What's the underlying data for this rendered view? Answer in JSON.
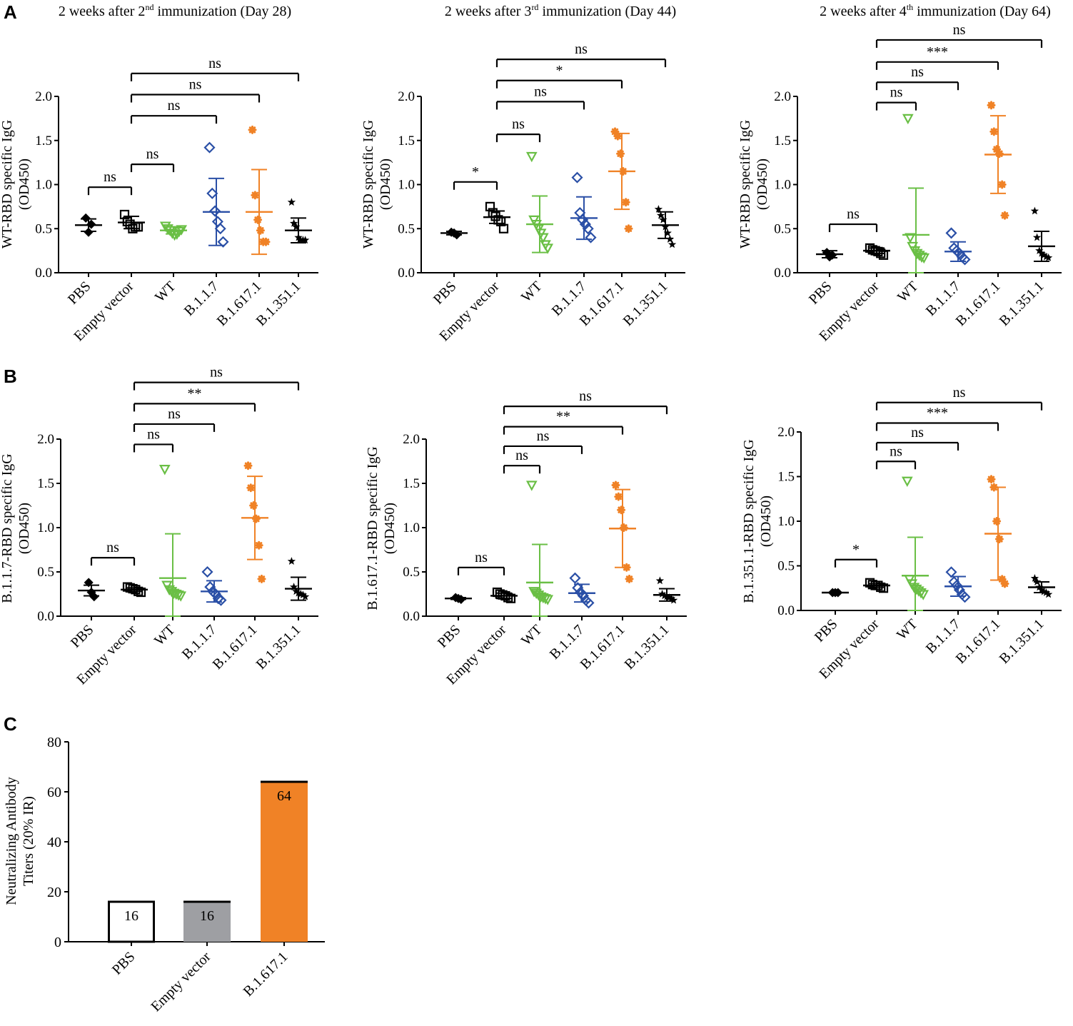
{
  "figure": {
    "panel_labels": [
      "A",
      "B",
      "C"
    ],
    "groups": [
      "PBS",
      "Empty vector",
      "WT",
      "B.1.1.7",
      "B.1.617.1",
      "B.1.351.1"
    ],
    "colors": {
      "PBS": "#000000",
      "Empty vector": "#000000",
      "WT": "#6abf45",
      "B.1.1.7": "#2a4fa6",
      "B.1.617.1": "#f08226",
      "B.1.351.1": "#000000"
    },
    "markers": [
      "diamond-filled",
      "square-open",
      "triangle-open",
      "diamond-open",
      "asterisk",
      "star"
    ],
    "titles": {
      "A1": {
        "pre": "2 weeks after 2",
        "sup": "nd",
        "post": " immunization (Day 28)"
      },
      "A2": {
        "pre": "2 weeks after 3",
        "sup": "rd",
        "post": " immunization (Day 44)"
      },
      "A3": {
        "pre": "2 weeks after 4",
        "sup": "th",
        "post": " immunization (Day 64)"
      }
    }
  },
  "chart_data": [
    {
      "id": "A1",
      "type": "scatter",
      "ylabel": [
        "WT-RBD specific IgG",
        "(OD450)"
      ],
      "ylim": [
        0,
        2.0
      ],
      "yticks": [
        "0.0",
        "0.5",
        "1.0",
        "1.5",
        "2.0"
      ],
      "points": [
        [
          0.62,
          0.46,
          0.55
        ],
        [
          0.66,
          0.58,
          0.55,
          0.5,
          0.52,
          0.52
        ],
        [
          0.53,
          0.5,
          0.48,
          0.45,
          0.43,
          0.44,
          0.47,
          0.49
        ],
        [
          1.42,
          0.9,
          0.7,
          0.58,
          0.5,
          0.35
        ],
        [
          1.62,
          0.88,
          0.6,
          0.48,
          0.35,
          0.35
        ],
        [
          0.8,
          0.56,
          0.52,
          0.4,
          0.37,
          0.37,
          0.37
        ]
      ],
      "mean": [
        0.54,
        0.57,
        0.48,
        0.69,
        0.69,
        0.48
      ],
      "sd": [
        0.07,
        0.07,
        0.04,
        0.38,
        0.48,
        0.14
      ],
      "comparisons": [
        {
          "from": 0,
          "to": 1,
          "label": "ns",
          "y": 0.97
        },
        {
          "from": 1,
          "to": 2,
          "label": "ns",
          "y": 1.23
        },
        {
          "from": 1,
          "to": 3,
          "label": "ns",
          "y": 1.78
        },
        {
          "from": 1,
          "to": 4,
          "label": "ns",
          "y": 2.02
        },
        {
          "from": 1,
          "to": 5,
          "label": "ns",
          "y": 2.26
        }
      ]
    },
    {
      "id": "A2",
      "type": "scatter",
      "ylabel": [
        "WT-RBD specific IgG",
        "(OD450)"
      ],
      "ylim": [
        0,
        2.0
      ],
      "yticks": [
        "0.0",
        "0.5",
        "1.0",
        "1.5",
        "2.0"
      ],
      "points": [
        [
          0.46,
          0.45,
          0.43
        ],
        [
          0.75,
          0.68,
          0.64,
          0.6,
          0.58,
          0.5
        ],
        [
          1.32,
          0.6,
          0.55,
          0.5,
          0.45,
          0.4,
          0.32,
          0.28
        ],
        [
          1.08,
          0.68,
          0.6,
          0.55,
          0.5,
          0.4
        ],
        [
          1.6,
          1.55,
          1.35,
          1.15,
          0.8,
          0.5
        ],
        [
          0.72,
          0.65,
          0.6,
          0.52,
          0.45,
          0.38,
          0.32
        ]
      ],
      "mean": [
        0.45,
        0.63,
        0.55,
        0.62,
        1.15,
        0.54
      ],
      "sd": [
        0.02,
        0.07,
        0.32,
        0.24,
        0.43,
        0.15
      ],
      "comparisons": [
        {
          "from": 0,
          "to": 1,
          "label": "*",
          "y": 1.03
        },
        {
          "from": 1,
          "to": 2,
          "label": "ns",
          "y": 1.57
        },
        {
          "from": 1,
          "to": 3,
          "label": "ns",
          "y": 1.94
        },
        {
          "from": 1,
          "to": 4,
          "label": "*",
          "y": 2.18
        },
        {
          "from": 1,
          "to": 5,
          "label": "ns",
          "y": 2.42
        }
      ]
    },
    {
      "id": "A3",
      "type": "scatter",
      "ylabel": [
        "WT-RBD specific IgG",
        "(OD450)"
      ],
      "ylim": [
        0,
        2.0
      ],
      "yticks": [
        "0.0",
        "0.5",
        "1.0",
        "1.5",
        "2.0"
      ],
      "points": [
        [
          0.23,
          0.18,
          0.2
        ],
        [
          0.28,
          0.26,
          0.25,
          0.24,
          0.22,
          0.2
        ],
        [
          1.75,
          0.4,
          0.3,
          0.25,
          0.22,
          0.2,
          0.18,
          0.17
        ],
        [
          0.45,
          0.28,
          0.25,
          0.22,
          0.18,
          0.15
        ],
        [
          1.9,
          1.6,
          1.4,
          1.35,
          1.0,
          0.65
        ],
        [
          0.7,
          0.4,
          0.25,
          0.22,
          0.2,
          0.18,
          0.17
        ]
      ],
      "mean": [
        0.21,
        0.25,
        0.43,
        0.24,
        1.34,
        0.3
      ],
      "sd": [
        0.04,
        0.03,
        0.53,
        0.11,
        0.44,
        0.17
      ],
      "comparisons": [
        {
          "from": 1,
          "to": 2,
          "label": "ns",
          "y": 1.93
        },
        {
          "from": 1,
          "to": 3,
          "label": "ns",
          "y": 2.16
        },
        {
          "from": 1,
          "to": 4,
          "label": "***",
          "y": 2.39
        },
        {
          "from": 1,
          "to": 5,
          "label": "ns",
          "y": 2.64
        },
        {
          "from": 0,
          "to": 1,
          "label": "ns",
          "y": 0.55
        }
      ]
    },
    {
      "id": "B1",
      "type": "scatter",
      "ylabel": [
        "B.1.1.7-RBD specific IgG",
        "(OD450)"
      ],
      "ylim": [
        0,
        2.0
      ],
      "yticks": [
        "0.0",
        "0.5",
        "1.0",
        "1.5",
        "2.0"
      ],
      "points": [
        [
          0.38,
          0.27,
          0.22
        ],
        [
          0.33,
          0.32,
          0.31,
          0.3,
          0.28,
          0.27
        ],
        [
          1.66,
          0.35,
          0.3,
          0.28,
          0.26,
          0.25,
          0.24,
          0.23
        ],
        [
          0.5,
          0.33,
          0.28,
          0.25,
          0.2,
          0.18
        ],
        [
          1.7,
          1.45,
          1.25,
          1.1,
          0.8,
          0.42
        ],
        [
          0.62,
          0.33,
          0.28,
          0.26,
          0.25,
          0.24,
          0.22
        ]
      ],
      "mean": [
        0.29,
        0.3,
        0.43,
        0.28,
        1.11,
        0.31
      ],
      "sd": [
        0.06,
        0.02,
        0.5,
        0.12,
        0.47,
        0.13
      ],
      "comparisons": [
        {
          "from": 0,
          "to": 1,
          "label": "ns",
          "y": 0.66
        },
        {
          "from": 1,
          "to": 2,
          "label": "ns",
          "y": 1.94
        },
        {
          "from": 1,
          "to": 3,
          "label": "ns",
          "y": 2.17
        },
        {
          "from": 1,
          "to": 4,
          "label": "**",
          "y": 2.4
        },
        {
          "from": 1,
          "to": 5,
          "label": "ns",
          "y": 2.64
        }
      ]
    },
    {
      "id": "B2",
      "type": "scatter",
      "ylabel": [
        "B.1.617.1-RBD specific IgG",
        "(OD450)"
      ],
      "ylim": [
        0,
        2.0
      ],
      "yticks": [
        "0.0",
        "0.5",
        "1.0",
        "1.5",
        "2.0"
      ],
      "points": [
        [
          0.21,
          0.2,
          0.19
        ],
        [
          0.27,
          0.25,
          0.24,
          0.23,
          0.21,
          0.2
        ],
        [
          1.48,
          0.28,
          0.26,
          0.24,
          0.22,
          0.21,
          0.2,
          0.19
        ],
        [
          0.43,
          0.32,
          0.27,
          0.23,
          0.18,
          0.15
        ],
        [
          1.48,
          1.35,
          1.2,
          1.0,
          0.55,
          0.42
        ],
        [
          0.4,
          0.25,
          0.23,
          0.22,
          0.21,
          0.2,
          0.18
        ]
      ],
      "mean": [
        0.2,
        0.23,
        0.38,
        0.26,
        0.99,
        0.24
      ],
      "sd": [
        0.01,
        0.03,
        0.43,
        0.1,
        0.44,
        0.07
      ],
      "comparisons": [
        {
          "from": 0,
          "to": 1,
          "label": "ns",
          "y": 0.55
        },
        {
          "from": 1,
          "to": 2,
          "label": "ns",
          "y": 1.7
        },
        {
          "from": 1,
          "to": 3,
          "label": "ns",
          "y": 1.92
        },
        {
          "from": 1,
          "to": 4,
          "label": "**",
          "y": 2.14
        },
        {
          "from": 1,
          "to": 5,
          "label": "ns",
          "y": 2.37
        }
      ]
    },
    {
      "id": "B3",
      "type": "scatter",
      "ylabel": [
        "B.1.351.1-RBD specific IgG",
        "(OD450)"
      ],
      "ylim": [
        0,
        2.0
      ],
      "yticks": [
        "0.0",
        "0.5",
        "1.0",
        "1.5",
        "2.0"
      ],
      "points": [
        [
          0.2,
          0.2,
          0.2
        ],
        [
          0.31,
          0.29,
          0.28,
          0.28,
          0.26,
          0.25
        ],
        [
          1.45,
          0.35,
          0.3,
          0.26,
          0.24,
          0.22,
          0.2,
          0.18
        ],
        [
          0.43,
          0.32,
          0.28,
          0.23,
          0.18,
          0.15
        ],
        [
          1.47,
          1.38,
          1.0,
          0.8,
          0.35,
          0.3
        ],
        [
          0.36,
          0.32,
          0.26,
          0.23,
          0.21,
          0.2,
          0.18
        ]
      ],
      "mean": [
        0.2,
        0.28,
        0.39,
        0.27,
        0.86,
        0.26
      ],
      "sd": [
        0.0,
        0.02,
        0.43,
        0.11,
        0.52,
        0.06
      ],
      "comparisons": [
        {
          "from": 0,
          "to": 1,
          "label": "*",
          "y": 0.57
        },
        {
          "from": 1,
          "to": 2,
          "label": "ns",
          "y": 1.67
        },
        {
          "from": 1,
          "to": 3,
          "label": "ns",
          "y": 1.88
        },
        {
          "from": 1,
          "to": 4,
          "label": "***",
          "y": 2.1
        },
        {
          "from": 1,
          "to": 5,
          "label": "ns",
          "y": 2.33
        }
      ]
    },
    {
      "id": "C",
      "type": "bar",
      "ylabel": [
        "Neutralizing Antibody",
        "Titers (20% IR)"
      ],
      "categories": [
        "PBS",
        "Empty vector",
        "B.1.617.1"
      ],
      "values": [
        16,
        16,
        64
      ],
      "value_labels": [
        "16",
        "16",
        "64"
      ],
      "ylim": [
        0,
        80
      ],
      "yticks": [
        "0",
        "20",
        "40",
        "60",
        "80"
      ],
      "bar_fill": [
        "#ffffff",
        "#9e9fa3",
        "#f08226"
      ]
    }
  ]
}
